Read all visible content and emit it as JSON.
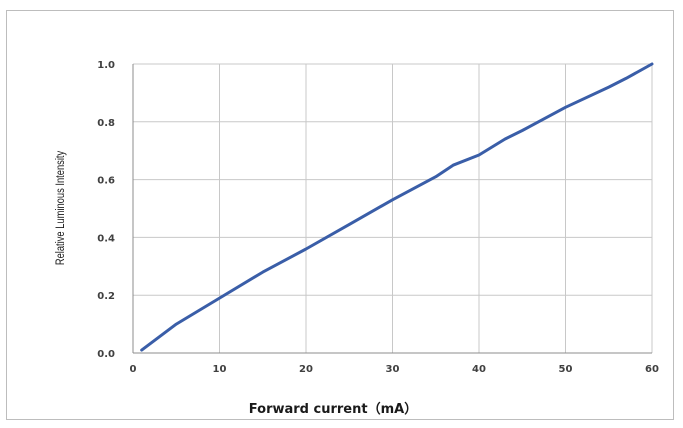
{
  "chart_data": {
    "type": "line",
    "title": "",
    "xlabel": "Forward current（mA）",
    "ylabel": "Relative Luminous Intensity",
    "xlim": [
      0,
      60
    ],
    "ylim": [
      0.0,
      1.0
    ],
    "x_ticks": [
      "0",
      "10",
      "20",
      "30",
      "40",
      "50",
      "60"
    ],
    "y_ticks": [
      "0.0",
      "0.2",
      "0.4",
      "0.6",
      "0.8",
      "1.0"
    ],
    "grid": true,
    "legend": "none",
    "series": [
      {
        "color": "#3a5ea8",
        "x": [
          1,
          5,
          10,
          15,
          20,
          25,
          30,
          35,
          37,
          40,
          43,
          45,
          50,
          55,
          57,
          60
        ],
        "y": [
          0.01,
          0.1,
          0.19,
          0.28,
          0.36,
          0.445,
          0.53,
          0.61,
          0.65,
          0.685,
          0.74,
          0.77,
          0.85,
          0.92,
          0.95,
          1.0
        ]
      }
    ]
  }
}
